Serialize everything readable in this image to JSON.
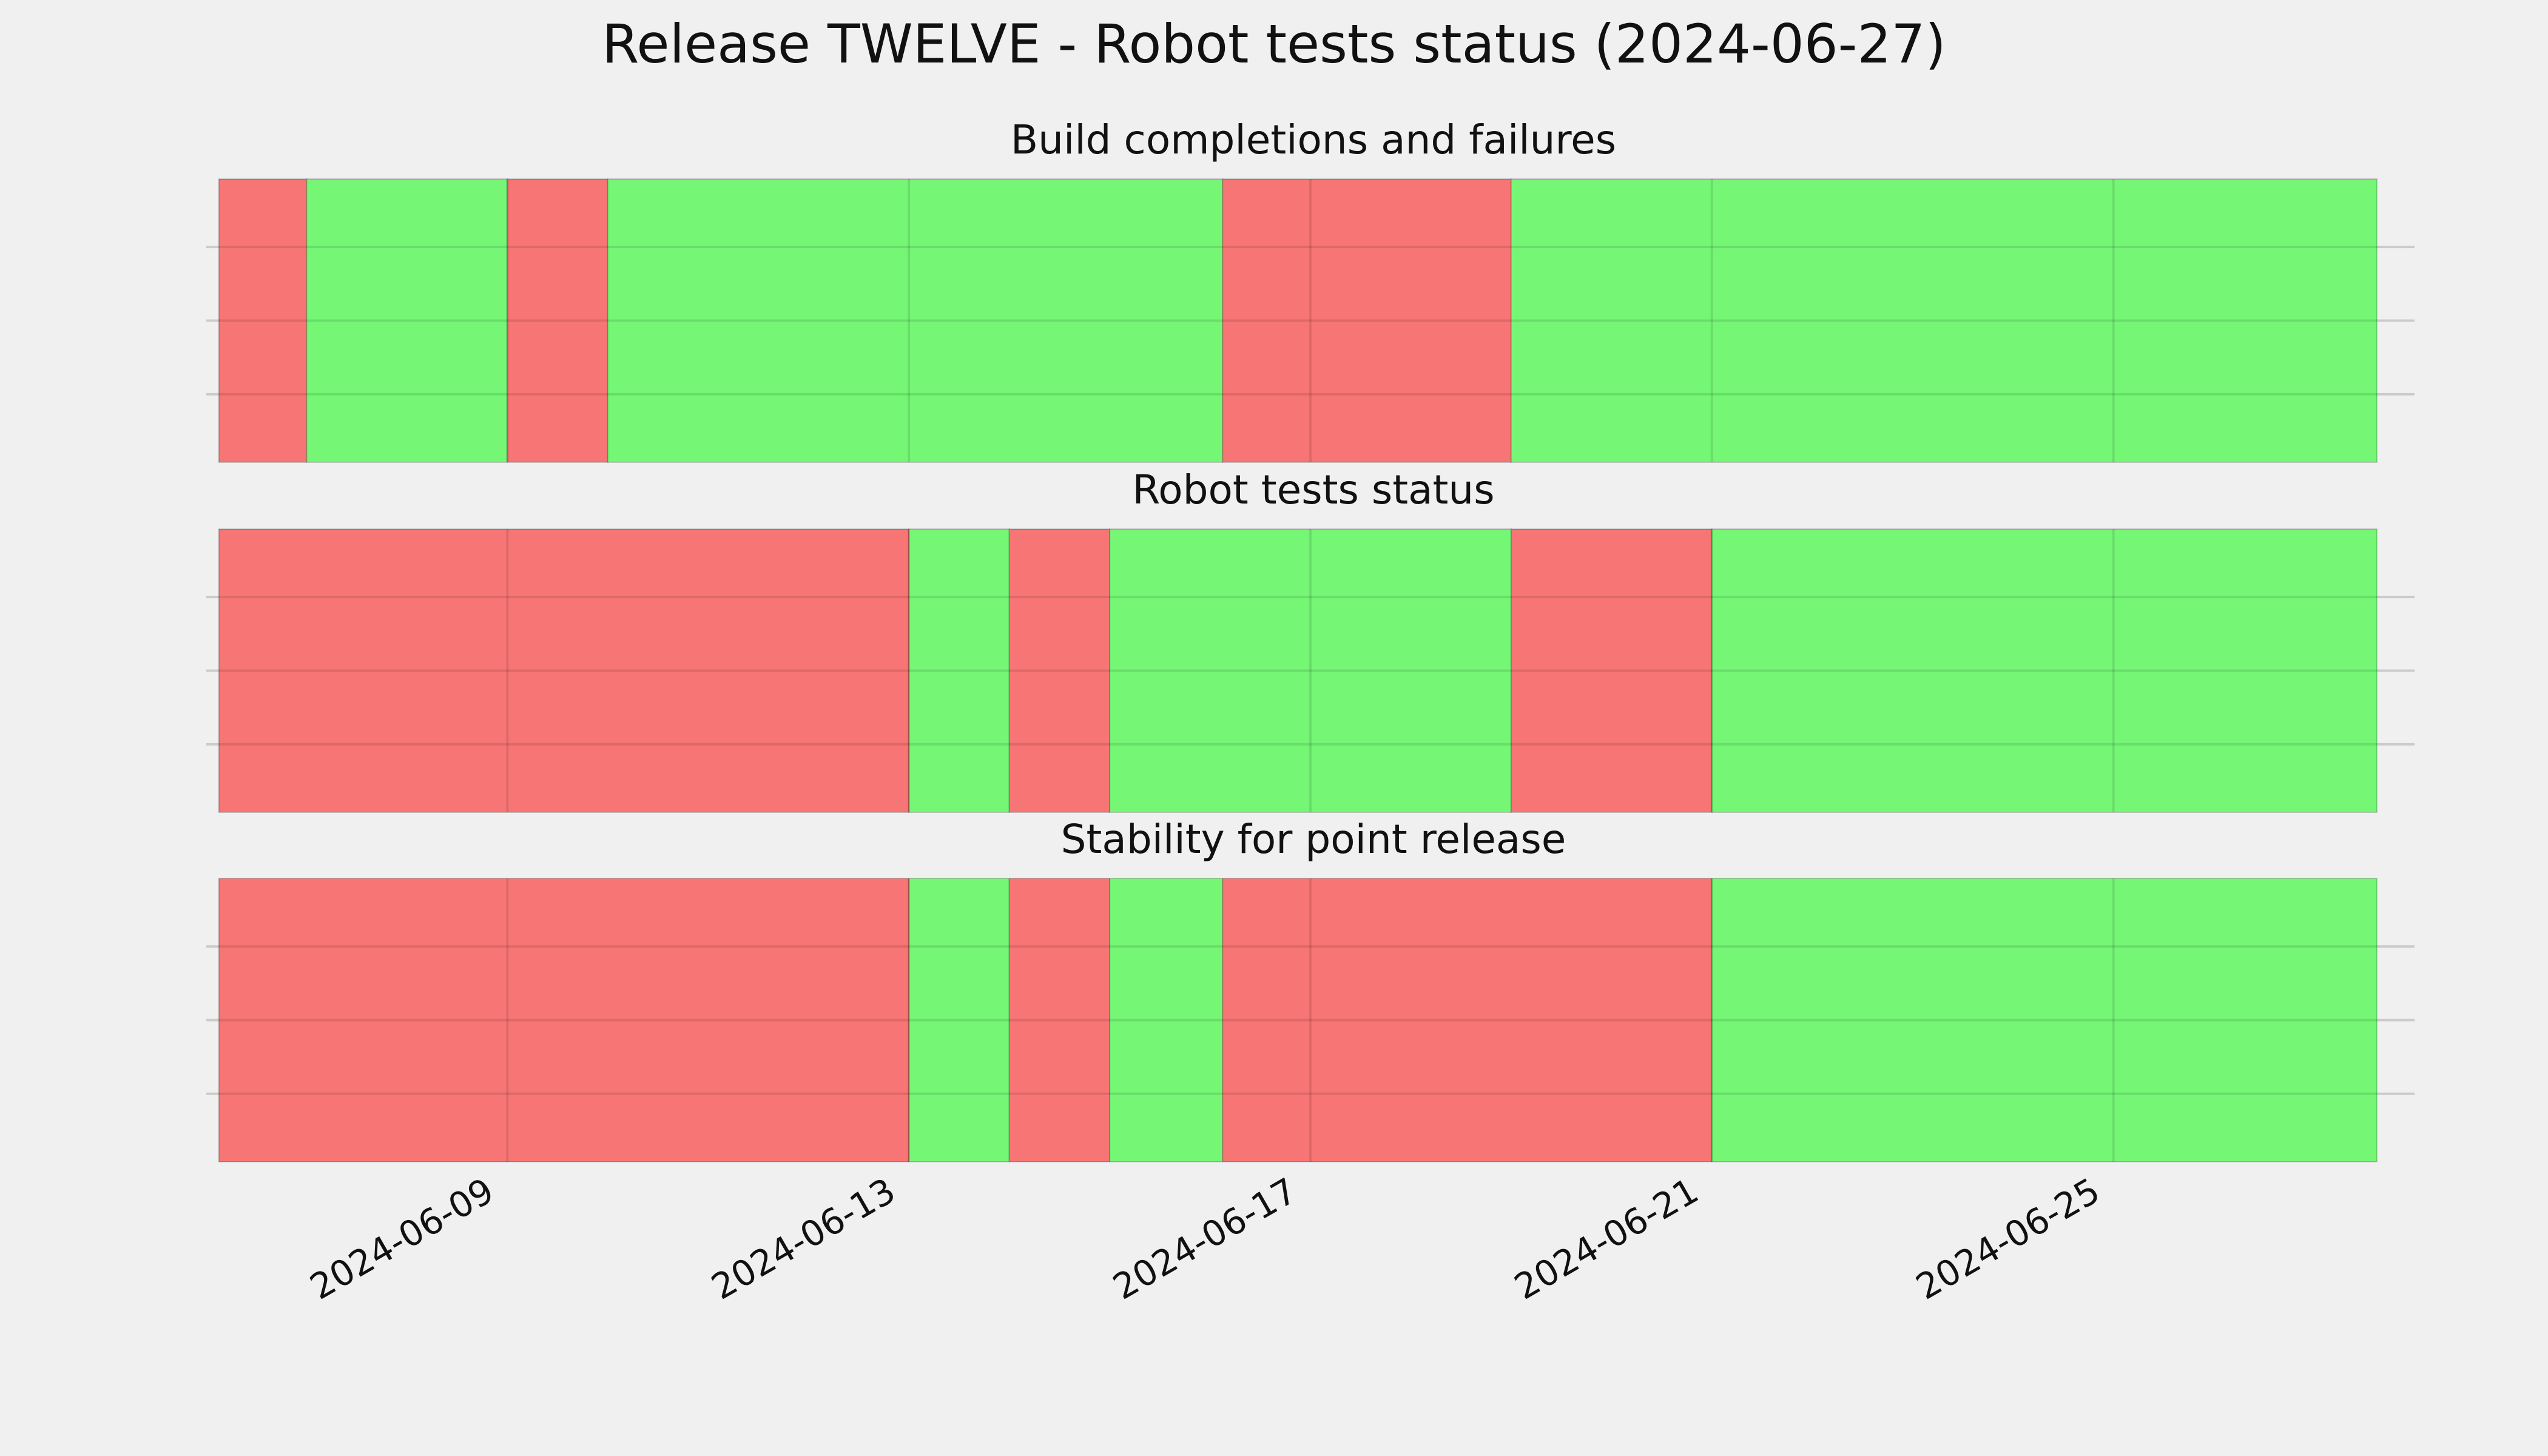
{
  "chart_data": {
    "type": "timeline",
    "title": "Release TWELVE - Robot tests status (2024-06-27)",
    "x_tick_labels": [
      "2024-06-09",
      "2024-06-13",
      "2024-06-17",
      "2024-06-21",
      "2024-06-25"
    ],
    "xlim": [
      "2024-06-06T00:00",
      "2024-06-28T00:00"
    ],
    "grid": true,
    "colors": {
      "ok": "#75f775",
      "fail": "#f77575",
      "background": "#f0f0f0"
    },
    "panels": [
      {
        "title": "Build completions and failures",
        "segments": [
          {
            "start": "2024-06-06T03:00",
            "end": "2024-06-07T00:00",
            "status": "fail"
          },
          {
            "start": "2024-06-07T00:00",
            "end": "2024-06-09T00:00",
            "status": "ok"
          },
          {
            "start": "2024-06-09T00:00",
            "end": "2024-06-10T00:00",
            "status": "fail"
          },
          {
            "start": "2024-06-10T00:00",
            "end": "2024-06-16T03:00",
            "status": "ok"
          },
          {
            "start": "2024-06-16T03:00",
            "end": "2024-06-19T00:00",
            "status": "fail"
          },
          {
            "start": "2024-06-19T00:00",
            "end": "2024-06-27T15:00",
            "status": "ok"
          }
        ]
      },
      {
        "title": "Robot tests status",
        "segments": [
          {
            "start": "2024-06-06T03:00",
            "end": "2024-06-13T00:00",
            "status": "fail"
          },
          {
            "start": "2024-06-13T00:00",
            "end": "2024-06-14T00:00",
            "status": "ok"
          },
          {
            "start": "2024-06-14T00:00",
            "end": "2024-06-15T00:00",
            "status": "fail"
          },
          {
            "start": "2024-06-15T00:00",
            "end": "2024-06-19T00:00",
            "status": "ok"
          },
          {
            "start": "2024-06-19T00:00",
            "end": "2024-06-21T00:00",
            "status": "fail"
          },
          {
            "start": "2024-06-21T00:00",
            "end": "2024-06-27T15:00",
            "status": "ok"
          }
        ]
      },
      {
        "title": "Stability for point release",
        "segments": [
          {
            "start": "2024-06-06T03:00",
            "end": "2024-06-13T00:00",
            "status": "fail"
          },
          {
            "start": "2024-06-13T00:00",
            "end": "2024-06-14T00:00",
            "status": "ok"
          },
          {
            "start": "2024-06-14T00:00",
            "end": "2024-06-15T00:00",
            "status": "fail"
          },
          {
            "start": "2024-06-15T00:00",
            "end": "2024-06-16T03:00",
            "status": "ok"
          },
          {
            "start": "2024-06-16T03:00",
            "end": "2024-06-21T00:00",
            "status": "fail"
          },
          {
            "start": "2024-06-21T00:00",
            "end": "2024-06-27T15:00",
            "status": "ok"
          }
        ]
      }
    ]
  }
}
